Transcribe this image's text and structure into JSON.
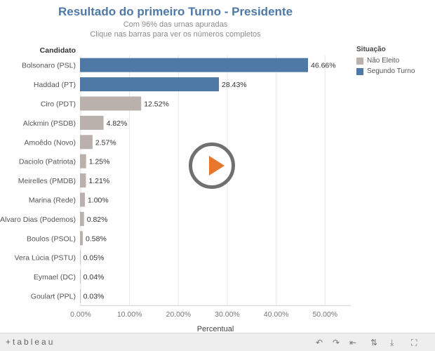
{
  "header": {
    "title": "Resultado do primeiro Turno - Presidente",
    "subtitle1": "Com 96% das urnas apuradas",
    "subtitle2": "Clique nas barras para ver os números completos"
  },
  "legend": {
    "title": "Situação",
    "items": [
      {
        "label": "Não Eleito",
        "color": "#bab0ac"
      },
      {
        "label": "Segundo Turno",
        "color": "#4e79a7"
      }
    ]
  },
  "chart_data": {
    "type": "bar",
    "orientation": "horizontal",
    "row_header": "Candidato",
    "xlabel": "Percentual",
    "xlim": [
      0,
      50
    ],
    "xticks": [
      0,
      10,
      20,
      30,
      40,
      50
    ],
    "xtick_labels": [
      "0.00%",
      "10.00%",
      "20.00%",
      "30.00%",
      "40.00%",
      "50.00%"
    ],
    "grid": true,
    "categories": [
      "Bolsonaro (PSL)",
      "Haddad (PT)",
      "Ciro (PDT)",
      "Alckmin (PSDB)",
      "Amoêdo (Novo)",
      "Daciolo (Patriota)",
      "Meirelles (PMDB)",
      "Marina (Rede)",
      "Alvaro Dias (Podemos)",
      "Boulos (PSOL)",
      "Vera Lúcia (PSTU)",
      "Eymael (DC)",
      "Goulart (PPL)"
    ],
    "values": [
      46.66,
      28.43,
      12.52,
      4.82,
      2.57,
      1.25,
      1.21,
      1.0,
      0.82,
      0.58,
      0.05,
      0.04,
      0.03
    ],
    "value_labels": [
      "46.66%",
      "28.43%",
      "12.52%",
      "4.82%",
      "2.57%",
      "1.25%",
      "1.21%",
      "1.00%",
      "0.82%",
      "0.58%",
      "0.05%",
      "0.04%",
      "0.03%"
    ],
    "situacao": [
      "Segundo Turno",
      "Segundo Turno",
      "Não Eleito",
      "Não Eleito",
      "Não Eleito",
      "Não Eleito",
      "Não Eleito",
      "Não Eleito",
      "Não Eleito",
      "Não Eleito",
      "Não Eleito",
      "Não Eleito",
      "Não Eleito"
    ]
  },
  "footer": {
    "logo": "+tableau",
    "controls": [
      "↶",
      "↷",
      "⇤",
      "⇅",
      "⤓",
      "⛶"
    ]
  },
  "icons": {
    "play": "play-icon"
  }
}
